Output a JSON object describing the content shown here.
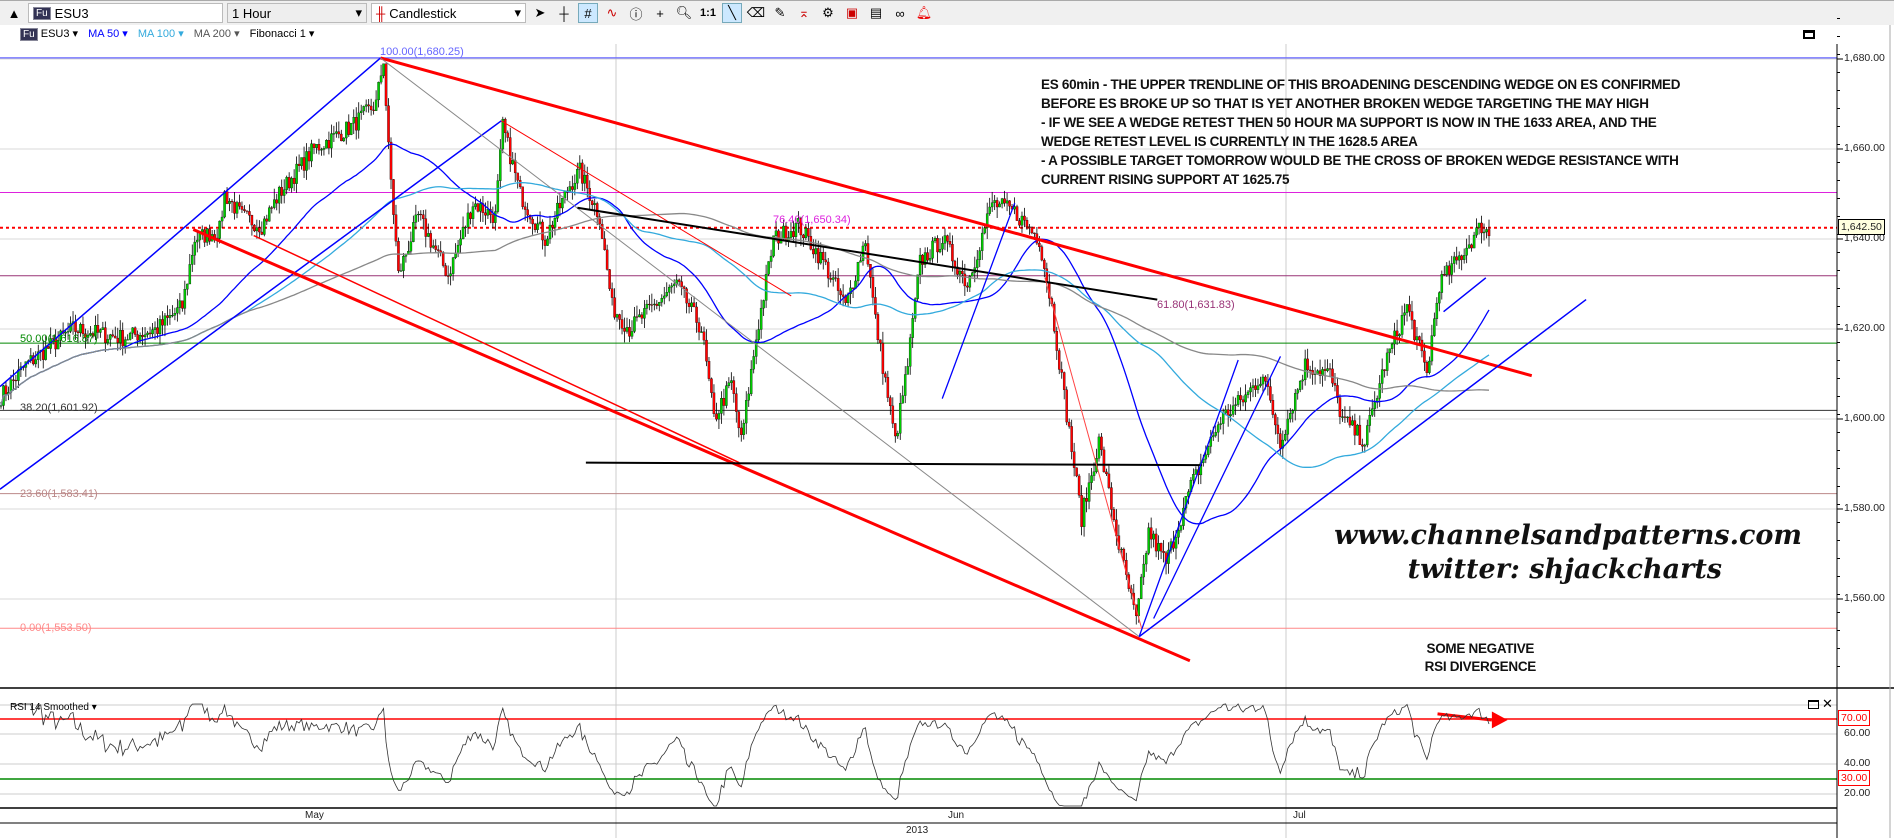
{
  "toolbar": {
    "symbol": "ESU3",
    "interval": "1 Hour",
    "chart_type": "Candlestick",
    "tools": [
      "collapse-icon",
      "cursor-icon",
      "crosshair-icon",
      "grid-icon",
      "indicator-icon",
      "info-icon",
      "add-marker-icon",
      "zoom-icon",
      "one-to-one-icon",
      "line-tool-icon",
      "eraser-icon",
      "draw-icon",
      "fib-icon",
      "settings-icon",
      "template-icon",
      "template2-icon",
      "link-icon",
      "alert-icon"
    ],
    "one_to_one": "1:1"
  },
  "legend": {
    "symbol": "ESU3",
    "ma50": "MA 50",
    "ma100": "MA 100",
    "ma200": "MA 200",
    "fib": "Fibonacci 1",
    "colors": {
      "ma50": "#0000ff",
      "ma100": "#33aadd",
      "ma200": "#888888"
    }
  },
  "annotation": [
    "ES 60min - THE UPPER TRENDLINE OF THIS BROADENING DESCENDING WEDGE ON ES CONFIRMED",
    "BEFORE ES BROKE UP SO THAT IS YET ANOTHER BROKEN WEDGE TARGETING THE MAY HIGH",
    "- IF WE SEE A WEDGE RETEST THEN 50 HOUR MA SUPPORT IS NOW IN THE 1633 AREA, AND THE",
    "WEDGE RETEST LEVEL IS CURRENTLY IN THE 1628.5 AREA",
    "- A POSSIBLE TARGET TOMORROW WOULD BE THE CROSS OF BROKEN WEDGE RESISTANCE WITH",
    "CURRENT RISING SUPPORT AT 1625.75"
  ],
  "watermark": [
    "www.channelsandpatterns.com",
    "twitter: shjackcharts"
  ],
  "divergence_note": [
    "SOME NEGATIVE",
    "RSI DIVERGENCE"
  ],
  "rsi": {
    "title": "RSI 14 Smoothed",
    "overbought": "70.00",
    "oversold": "30.00"
  },
  "chart_data": {
    "type": "candlestick",
    "symbol": "ESU3",
    "interval": "1 Hour",
    "last_price": 1642.5,
    "last_price_label": "1,642.50",
    "ylim": [
      1540,
      1690
    ],
    "y_ticks": [
      "1,680.00",
      "1,660.00",
      "1,640.00",
      "1,620.00",
      "1,600.00",
      "1,580.00",
      "1,560.00"
    ],
    "y_tick_values": [
      1680,
      1660,
      1640,
      1620,
      1600,
      1580,
      1560
    ],
    "x_labels": [
      "May",
      "Jun",
      "Jul"
    ],
    "year_label": "2013",
    "rsi_ticks": [
      "60.00",
      "40.00",
      "20.00"
    ],
    "rsi_tick_values": [
      60,
      40,
      20
    ],
    "fibonacci": [
      {
        "label": "100.00(1,680.25)",
        "value": 1680.25,
        "color": "#6666ff"
      },
      {
        "label": "76.40(1,650.34)",
        "value": 1650.34,
        "color": "#dd22dd"
      },
      {
        "label": "61.80(1,631.83)",
        "value": 1631.83,
        "color": "#993377"
      },
      {
        "label": "50.00(1,616.87)",
        "value": 1616.87,
        "color": "#008800"
      },
      {
        "label": "38.20(1,601.92)",
        "value": 1601.92,
        "color": "#333333"
      },
      {
        "label": "23.60(1,583.41)",
        "value": 1583.41,
        "color": "#bb8888"
      },
      {
        "label": "0.00(1,553.50)",
        "value": 1553.5,
        "color": "#ff8888"
      }
    ],
    "bar_count": 600,
    "price_waypoints": [
      [
        0,
        1605
      ],
      [
        10,
        1612
      ],
      [
        29,
        1620
      ],
      [
        49,
        1618
      ],
      [
        63,
        1620
      ],
      [
        73,
        1625
      ],
      [
        78,
        1640
      ],
      [
        88,
        1642
      ],
      [
        90,
        1650
      ],
      [
        97,
        1645
      ],
      [
        105,
        1643
      ],
      [
        112,
        1650
      ],
      [
        126,
        1660
      ],
      [
        141,
        1665
      ],
      [
        151,
        1670
      ],
      [
        154,
        1680
      ],
      [
        156,
        1660
      ],
      [
        160,
        1632
      ],
      [
        168,
        1645
      ],
      [
        180,
        1632
      ],
      [
        190,
        1648
      ],
      [
        199,
        1645
      ],
      [
        202,
        1665
      ],
      [
        209,
        1650
      ],
      [
        219,
        1640
      ],
      [
        229,
        1652
      ],
      [
        233,
        1655
      ],
      [
        241,
        1645
      ],
      [
        246,
        1625
      ],
      [
        253,
        1620
      ],
      [
        272,
        1630
      ],
      [
        282,
        1620
      ],
      [
        287,
        1600
      ],
      [
        294,
        1608
      ],
      [
        298,
        1595
      ],
      [
        304,
        1618
      ],
      [
        311,
        1640
      ],
      [
        321,
        1643
      ],
      [
        331,
        1635
      ],
      [
        340,
        1625
      ],
      [
        348,
        1640
      ],
      [
        352,
        1622
      ],
      [
        360,
        1595
      ],
      [
        365,
        1612
      ],
      [
        370,
        1635
      ],
      [
        379,
        1640
      ],
      [
        389,
        1630
      ],
      [
        399,
        1648
      ],
      [
        408,
        1646
      ],
      [
        418,
        1640
      ],
      [
        423,
        1625
      ],
      [
        428,
        1605
      ],
      [
        435,
        1578
      ],
      [
        442,
        1595
      ],
      [
        450,
        1572
      ],
      [
        457,
        1555
      ],
      [
        462,
        1575
      ],
      [
        469,
        1568
      ],
      [
        479,
        1585
      ],
      [
        491,
        1600
      ],
      [
        501,
        1605
      ],
      [
        508,
        1610
      ],
      [
        515,
        1595
      ],
      [
        525,
        1612
      ],
      [
        535,
        1610
      ],
      [
        540,
        1600
      ],
      [
        549,
        1595
      ],
      [
        557,
        1612
      ],
      [
        566,
        1625
      ],
      [
        574,
        1610
      ],
      [
        579,
        1630
      ],
      [
        586,
        1635
      ],
      [
        596,
        1643
      ],
      [
        599,
        1641
      ]
    ],
    "colors": {
      "up": "#00cc00",
      "down": "#ff0000",
      "wick": "#000000",
      "last_price_line": "#ff0000"
    }
  }
}
